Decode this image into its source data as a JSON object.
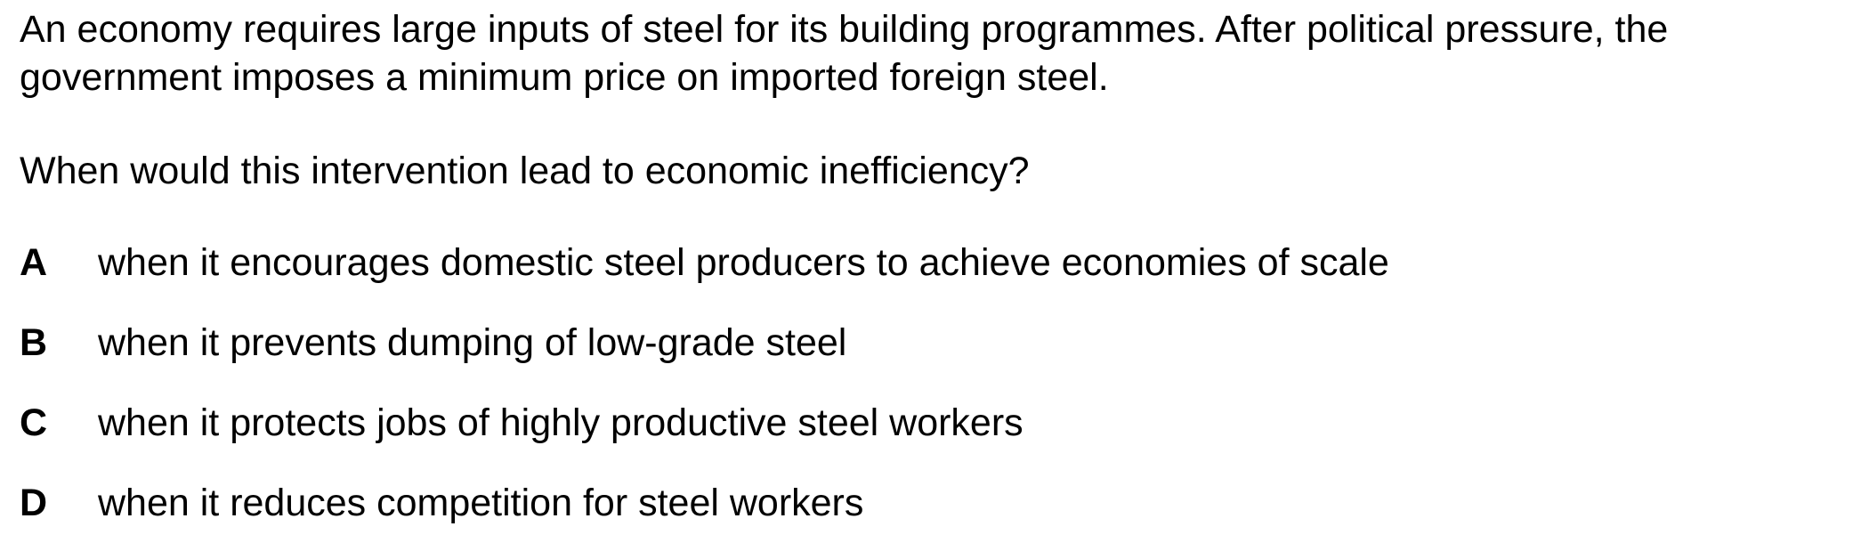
{
  "question": {
    "stem_line_1": "An economy requires large inputs of steel for its building programmes. After political pressure, the",
    "stem_line_2": "government imposes a minimum price on imported foreign steel.",
    "prompt": "When would this intervention lead to economic inefficiency?",
    "options": [
      {
        "letter": "A",
        "text": "when it encourages domestic steel producers to achieve economies of scale"
      },
      {
        "letter": "B",
        "text": "when it prevents dumping of low-grade steel"
      },
      {
        "letter": "C",
        "text": "when it protects jobs of highly productive steel workers"
      },
      {
        "letter": "D",
        "text": "when it reduces competition for steel workers"
      }
    ]
  }
}
